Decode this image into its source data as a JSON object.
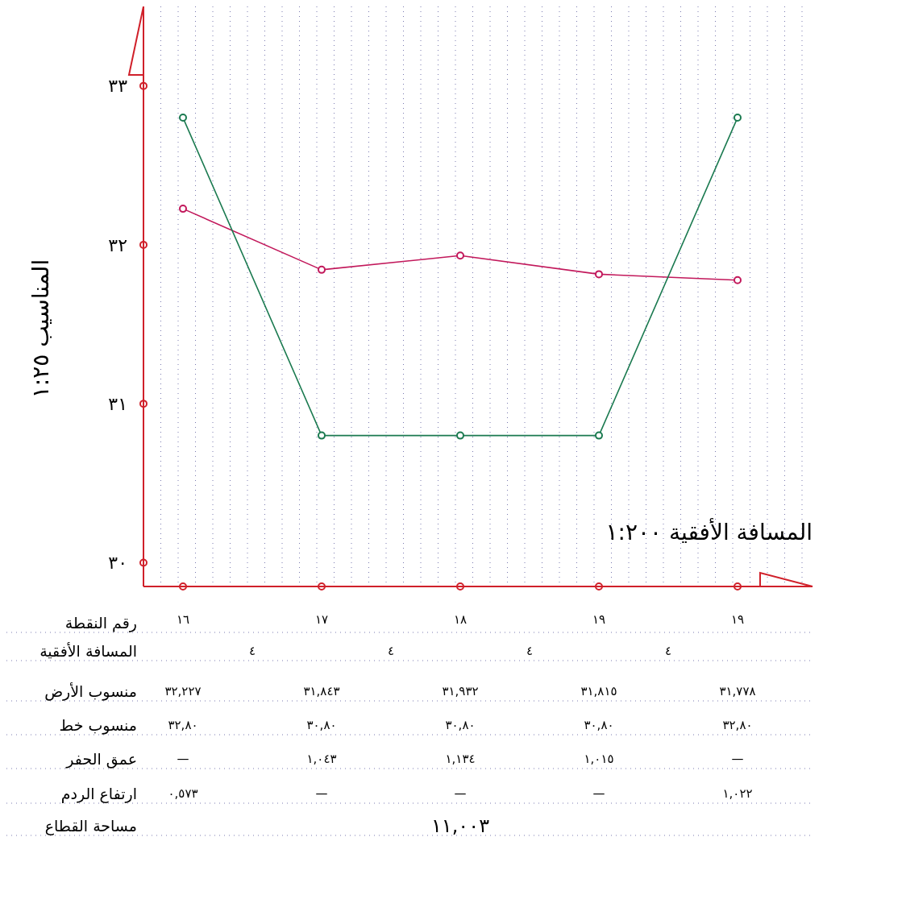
{
  "chart_data": {
    "type": "line",
    "xlabel": "المسافة الأفقية ١:٢٠٠",
    "ylabel": "المناسيب ١:٢٥",
    "categories": [
      "١٦",
      "١٧",
      "١٨",
      "١٩",
      "١٩"
    ],
    "series": [
      {
        "color": "#c2185b",
        "values": [
          32.227,
          31.843,
          31.932,
          31.815,
          31.778
        ],
        "value_labels": [
          "٣٢,٢٢٧",
          "٣١,٨٤٣",
          "٣١,٩٣٢",
          "٣١,٨١٥",
          "٣١,٧٧٨"
        ]
      },
      {
        "color": "#1b7a50",
        "values": [
          32.8,
          30.8,
          30.8,
          30.8,
          32.8
        ],
        "value_labels": [
          "٣٢,٨٠",
          "٣٠,٨٠",
          "٣٠,٨٠",
          "٣٠,٨٠",
          "٣٢,٨٠"
        ]
      }
    ],
    "ylim": [
      29.85,
      33.5
    ],
    "yticks": [
      {
        "value": 30,
        "label": "٣٠"
      },
      {
        "value": 31,
        "label": "٣١"
      },
      {
        "value": 32,
        "label": "٣٢"
      },
      {
        "value": 33,
        "label": "٣٣"
      }
    ],
    "grid": "x",
    "marker": "circle",
    "line_style": "solid",
    "legend": false,
    "annotations": [
      "رقم النقطة",
      "المسافة الأفقية",
      "منسوب الأرض",
      "منسوب خط",
      "عمق الحفر",
      "ارتفاع الردم",
      "مساحة القطاع",
      "٤",
      "٤",
      "٤",
      "٤",
      "—",
      "١,٠٤٣",
      "١,١٣٤",
      "١,٠١٥",
      "—",
      "٠,٥٧٣",
      "—",
      "—",
      "—",
      "١,٠٢٢",
      "١١,٠٠٣"
    ]
  }
}
